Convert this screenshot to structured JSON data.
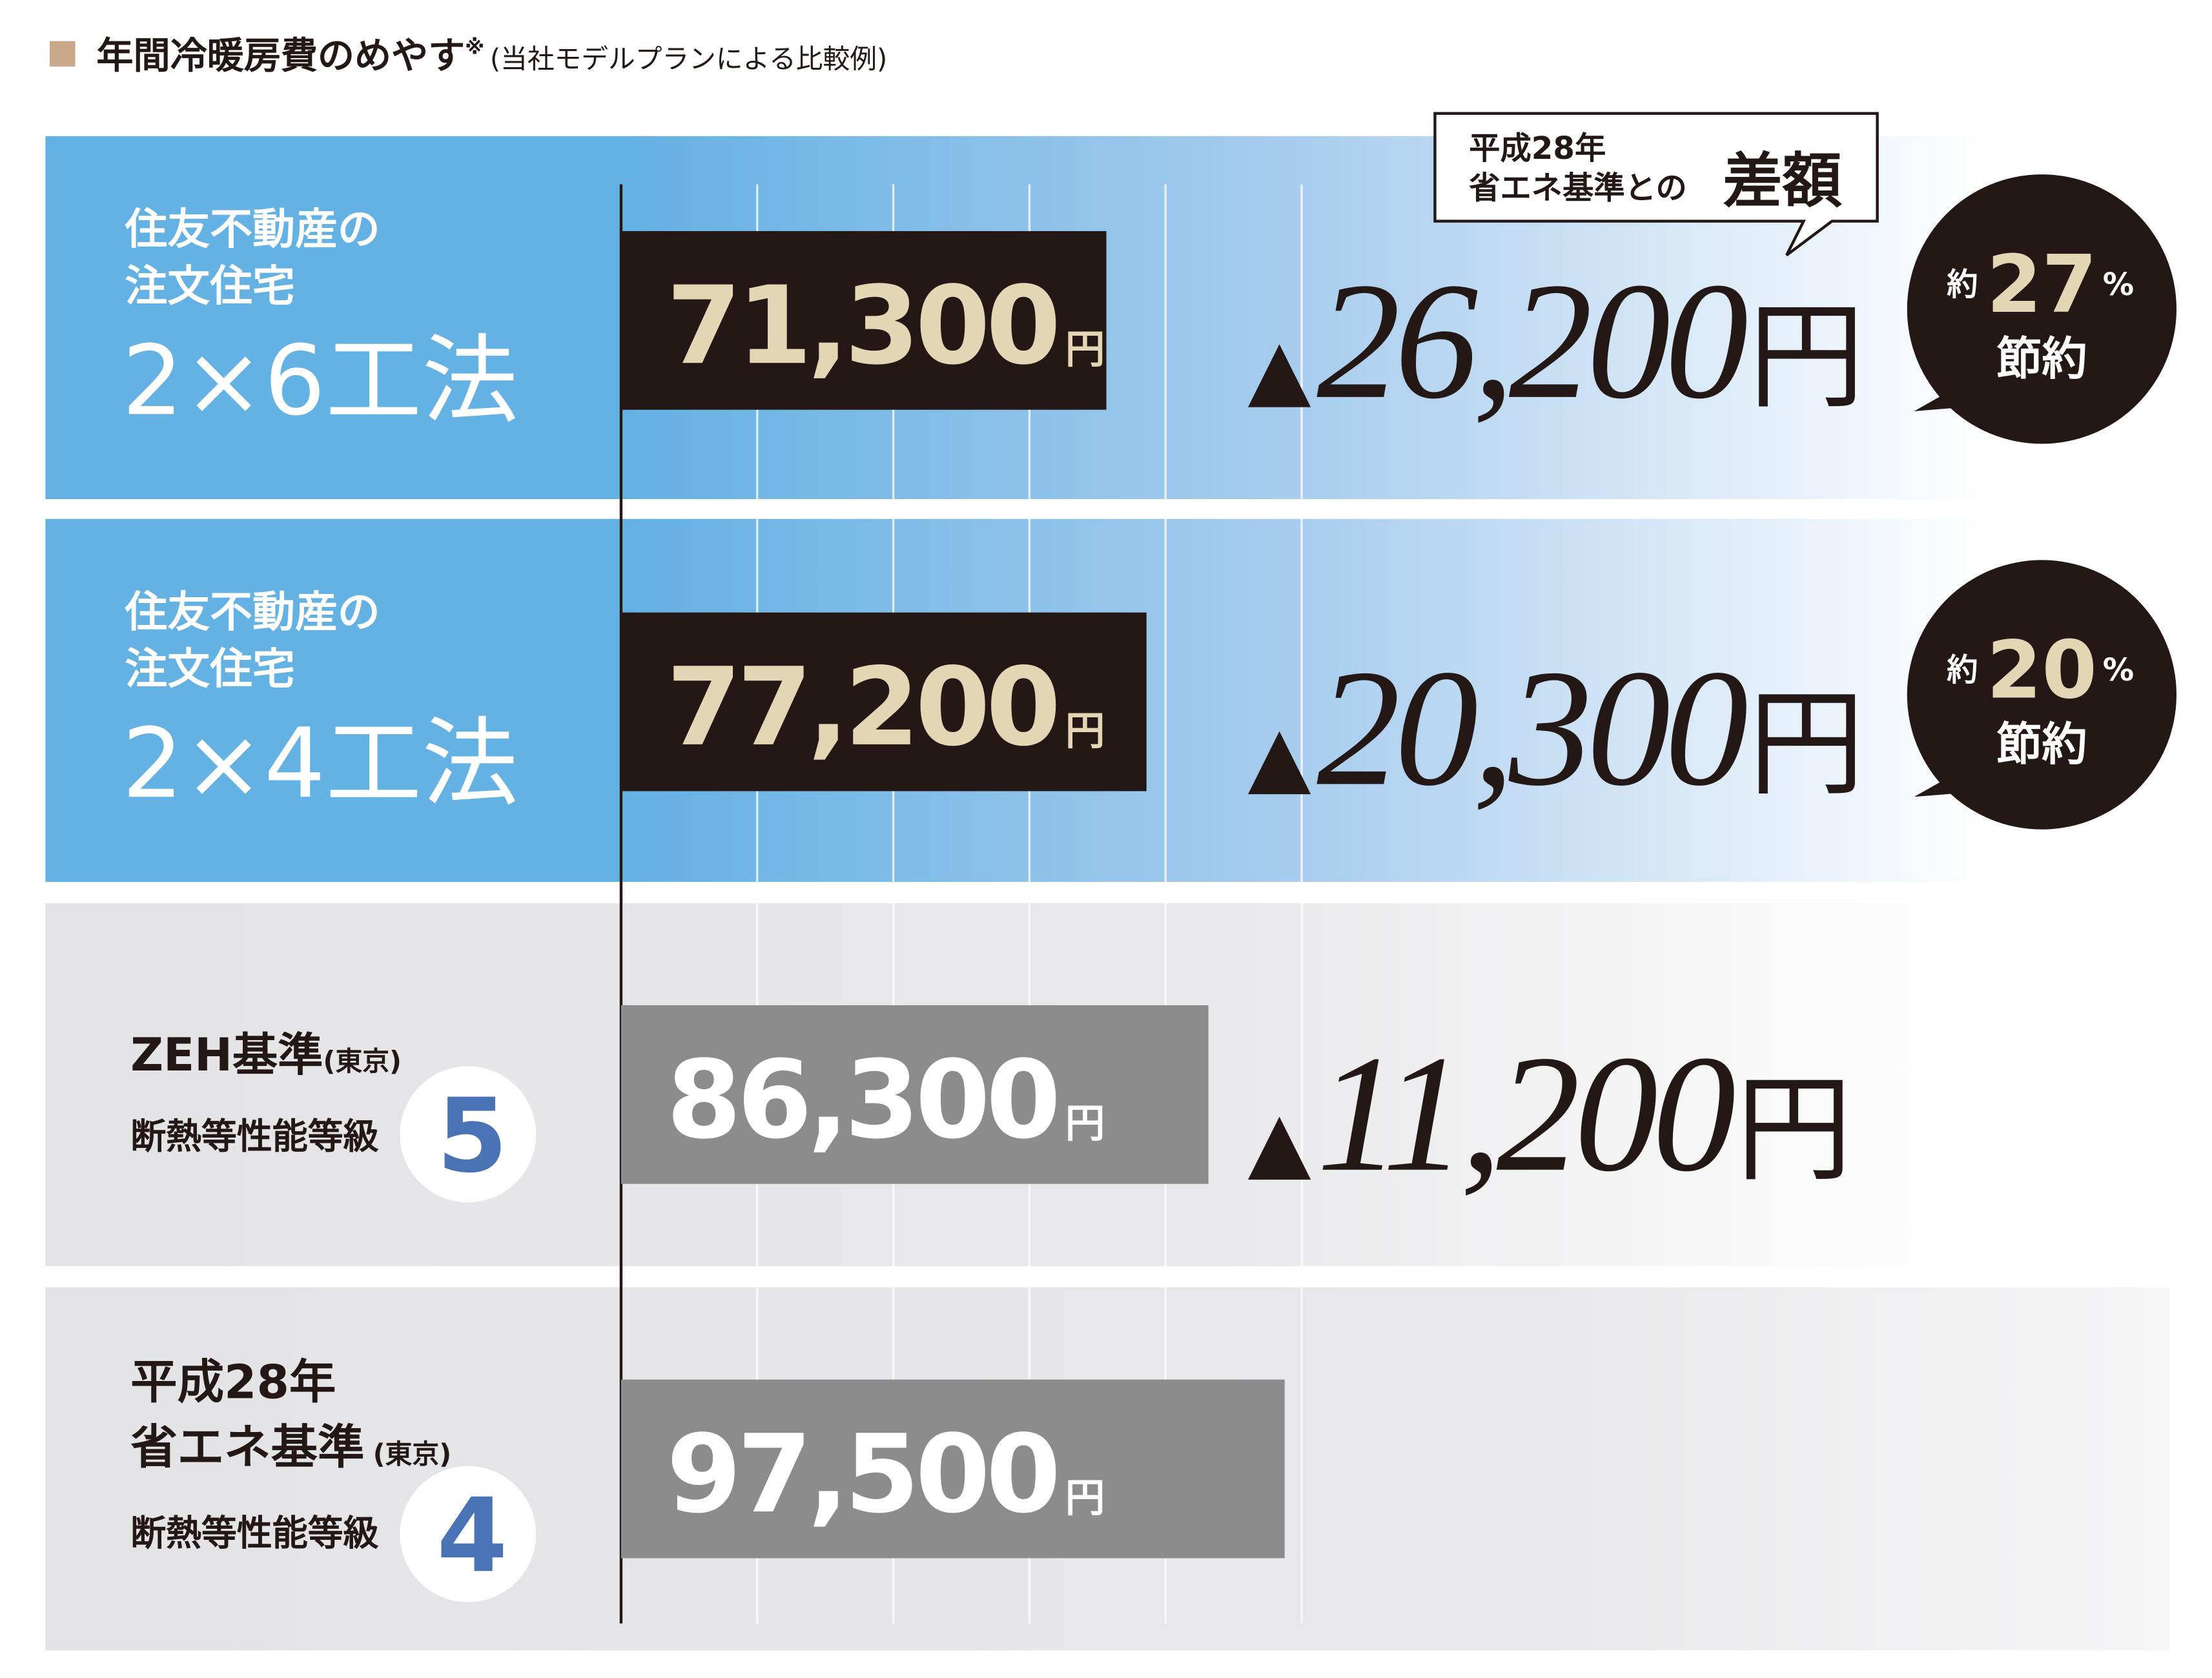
{
  "chart_data": {
    "type": "bar",
    "orientation": "horizontal",
    "title": "年間冷暖房費のめやす",
    "title_mark": "※",
    "subtitle": "(当社モデルプランによる比較例)",
    "categories": [
      [
        "住友不動産の",
        "注文住宅",
        "2×6工法"
      ],
      [
        "住友不動産の",
        "注文住宅",
        "2×4工法"
      ],
      [
        "ZEH基準",
        "(東京)",
        "断熱等性能等級",
        "5"
      ],
      [
        "平成28年",
        "省エネ基準",
        "(東京)",
        "断熱等性能等級",
        "4"
      ]
    ],
    "values": [
      71300,
      77200,
      86300,
      97500
    ],
    "value_labels": [
      "71,300",
      "77,200",
      "86,300",
      "97,500"
    ],
    "unit": "円",
    "bar_colors": [
      "#231815",
      "#231815",
      "#8c8c8c",
      "#8c8c8c"
    ],
    "label_colors": [
      "#e4d6b4",
      "#e4d6b4",
      "#ffffff",
      "#ffffff"
    ],
    "xlim": [
      0,
      200000
    ],
    "xticks": [
      0,
      20000,
      40000,
      60000,
      80000,
      100000
    ],
    "grid": true,
    "callout": {
      "lines": [
        "平成28年",
        "省エネ基準との"
      ],
      "emphasis": "差額"
    },
    "difference_prefix": "▲",
    "differences": [
      26200,
      20300,
      11200,
      null
    ],
    "difference_labels": [
      "26,200",
      "20,300",
      "11,200",
      null
    ],
    "savings_prefix": "約",
    "savings": [
      27,
      20,
      null,
      null
    ],
    "savings_unit": "%",
    "savings_suffix": "節約"
  }
}
